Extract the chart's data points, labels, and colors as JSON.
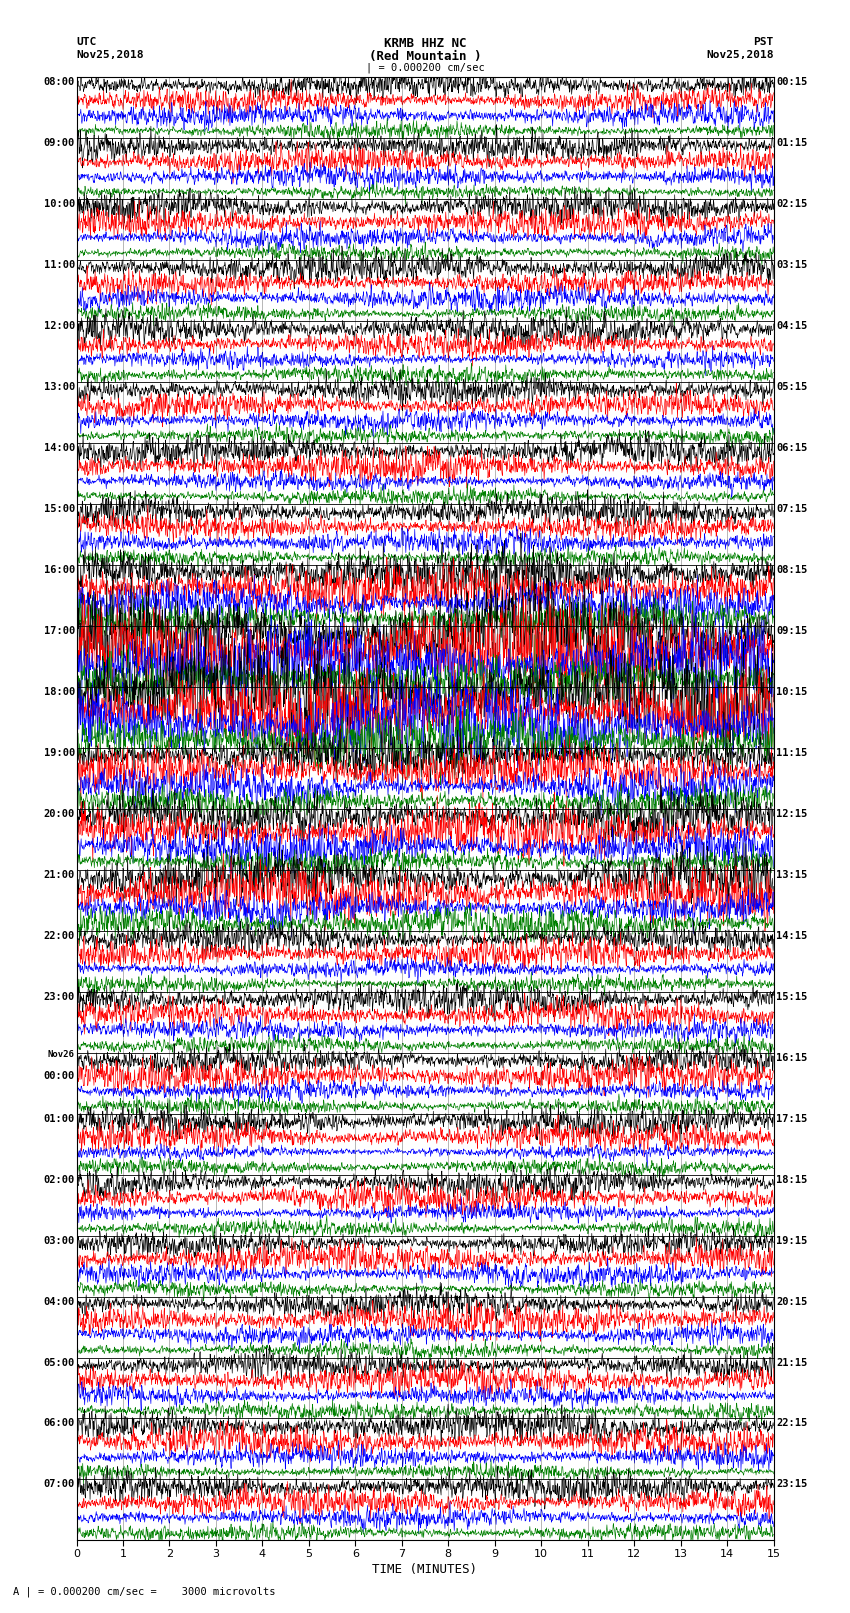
{
  "title_line1": "KRMB HHZ NC",
  "title_line2": "(Red Mountain )",
  "scale_bar": "| = 0.000200 cm/sec",
  "utc_label": "UTC",
  "utc_date": "Nov25,2018",
  "pst_label": "PST",
  "pst_date": "Nov25,2018",
  "xlabel": "TIME (MINUTES)",
  "bottom_note": "A | = 0.000200 cm/sec =    3000 microvolts",
  "left_times_utc": [
    "08:00",
    "09:00",
    "10:00",
    "11:00",
    "12:00",
    "13:00",
    "14:00",
    "15:00",
    "16:00",
    "17:00",
    "18:00",
    "19:00",
    "20:00",
    "21:00",
    "22:00",
    "23:00",
    "Nov26\n00:00",
    "01:00",
    "02:00",
    "03:00",
    "04:00",
    "05:00",
    "06:00",
    "07:00"
  ],
  "right_times_pst": [
    "00:15",
    "01:15",
    "02:15",
    "03:15",
    "04:15",
    "05:15",
    "06:15",
    "07:15",
    "08:15",
    "09:15",
    "10:15",
    "11:15",
    "12:15",
    "13:15",
    "14:15",
    "15:15",
    "16:15",
    "17:15",
    "18:15",
    "19:15",
    "20:15",
    "21:15",
    "22:15",
    "23:15"
  ],
  "n_rows": 24,
  "traces_per_row": 4,
  "colors": [
    "black",
    "red",
    "blue",
    "green"
  ],
  "bg_color": "white",
  "xmin": 0,
  "xmax": 15,
  "xticks": [
    0,
    1,
    2,
    3,
    4,
    5,
    6,
    7,
    8,
    9,
    10,
    11,
    12,
    13,
    14,
    15
  ],
  "amplitude_scale": [
    0.38,
    0.38,
    0.28,
    0.22
  ],
  "high_amp_rows": [
    9,
    10
  ],
  "high_amp_scale": 3.5,
  "med_amp_rows": [
    8,
    11,
    12,
    13
  ],
  "med_amp_scale": 1.8
}
